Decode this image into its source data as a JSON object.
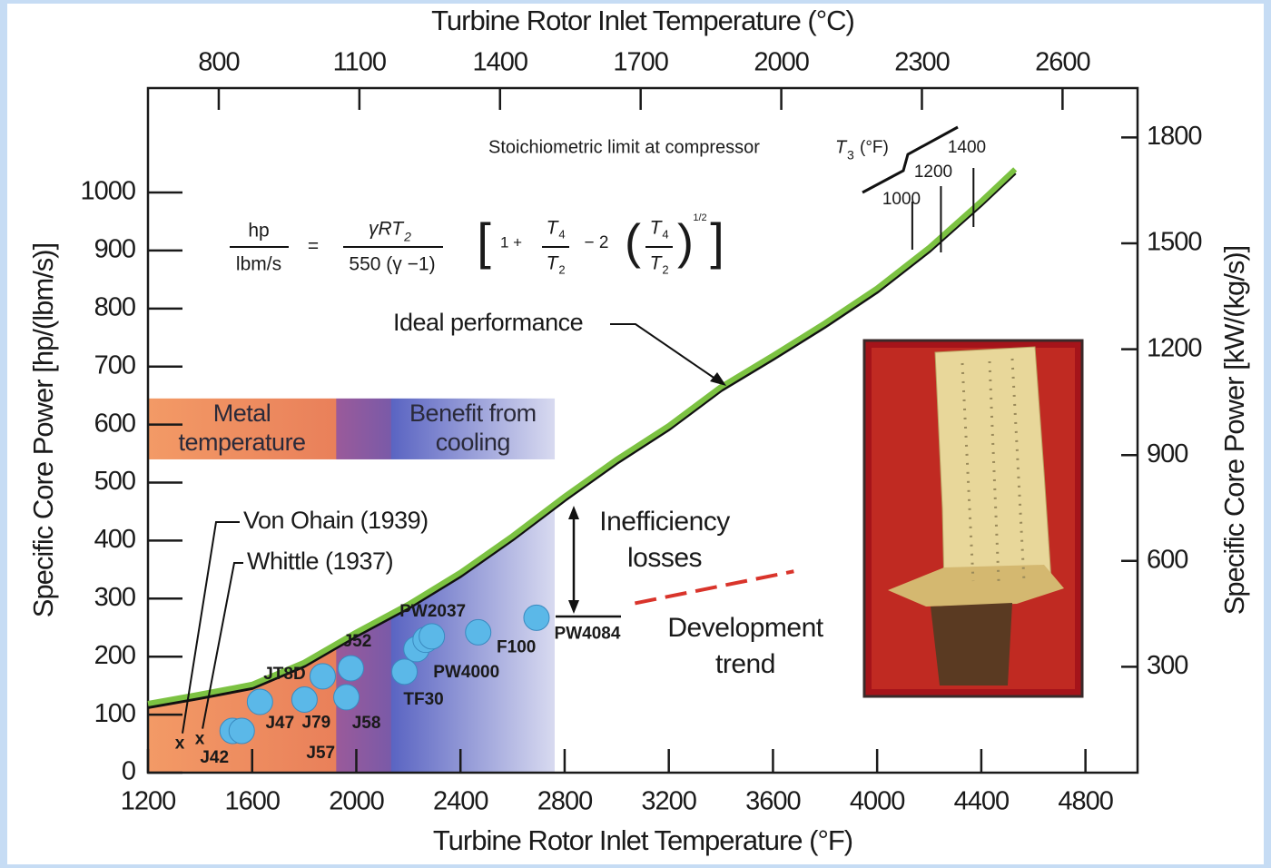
{
  "chart_data": {
    "type": "line",
    "top_axis_label": "Turbine Rotor Inlet Temperature (°C)",
    "x_label": "Turbine Rotor Inlet Temperature (°F)",
    "y_label": "Specific Core Power [hp/(lbm/s)]",
    "y2_label": "Specific Core Power [kW/(kg/s)]",
    "xlim": [
      1200,
      5000
    ],
    "xticks": [
      1200,
      1600,
      2000,
      2400,
      2800,
      3200,
      3600,
      4000,
      4400,
      4800
    ],
    "x2lim": [
      649,
      2760
    ],
    "x2ticks": [
      800,
      1100,
      1400,
      1700,
      2000,
      2300,
      2600
    ],
    "ylim": [
      0,
      1180
    ],
    "yticks": [
      0,
      100,
      200,
      300,
      400,
      500,
      600,
      700,
      800,
      900,
      1000
    ],
    "y2lim": [
      0,
      1940
    ],
    "y2ticks": [
      300,
      600,
      900,
      1200,
      1500,
      1800
    ],
    "series": [
      {
        "name": "Ideal performance",
        "type": "line",
        "color": "#7cc242",
        "x": [
          1200,
          1400,
          1600,
          1800,
          2000,
          2200,
          2400,
          2600,
          2800,
          3000,
          3200,
          3400,
          3600,
          3800,
          4000,
          4200,
          4400,
          4530
        ],
        "values": [
          119,
          135,
          152,
          190,
          242,
          290,
          345,
          408,
          476,
          540,
          598,
          665,
          719,
          775,
          835,
          905,
          985,
          1040
        ]
      },
      {
        "type": "dashed",
        "color": "#d9342b",
        "x": [
          3070,
          3680
        ],
        "values": [
          292,
          347
        ]
      },
      {
        "type": "scatter",
        "color": "#5bb8e8",
        "x": [
          1525,
          1560,
          1630,
          1801,
          1962,
          1871,
          1979,
          2185,
          2231,
          2266,
          2290,
          2468,
          2692
        ],
        "values": [
          72,
          72,
          122,
          126,
          130,
          166,
          180,
          174,
          213,
          229,
          235,
          242,
          267
        ],
        "labels": [
          "J42",
          "J57",
          "J47",
          "J79",
          "J58",
          "JT8D",
          "J52",
          "TF30",
          "PW4000",
          null,
          "PW2037",
          "F100",
          "PW4084"
        ]
      },
      {
        "type": "cross",
        "color": "#222222",
        "x": [
          1322,
          1399
        ],
        "values": [
          49,
          57
        ],
        "labels": [
          "Von Ohain (1939)",
          "Whittle (1937)"
        ],
        "marker": "x"
      }
    ],
    "regions": [
      {
        "lines": [
          "Metal",
          "temperature"
        ],
        "x": [
          1200,
          1922
        ]
      },
      {
        "lines": [
          "Benefit  from",
          "cooling"
        ],
        "x": [
          2133,
          2762
        ]
      }
    ],
    "region_band": [
      540,
      645
    ],
    "stoich": {
      "text": "Stoichiometric limit at compressor",
      "symbol": "T",
      "sub": "3",
      "unit": "(°F)",
      "T3": [
        1000,
        1200,
        1400
      ],
      "x": [
        4135,
        4245,
        4370
      ]
    },
    "inefficiency": [
      "Inefficiency",
      "losses"
    ],
    "development": [
      "Development",
      "trend"
    ],
    "formula": {
      "hp": "hp",
      "lbms": "lbm/s",
      "eq": "=",
      "num": "γRT",
      "num_sub": "2",
      "den": "550 (γ −1)",
      "lb": "[",
      "one": "1 +",
      "t4": "T",
      "t4_sub": "4",
      "t2": "T",
      "t2_sub": "2",
      "minus": "− 2",
      "lp": "(",
      "t4b": "T",
      "t4b_sub": "4",
      "t2b": "T",
      "t2b_sub": "2",
      "rp": ")",
      "exp": "1/2",
      "rb": "]"
    }
  }
}
